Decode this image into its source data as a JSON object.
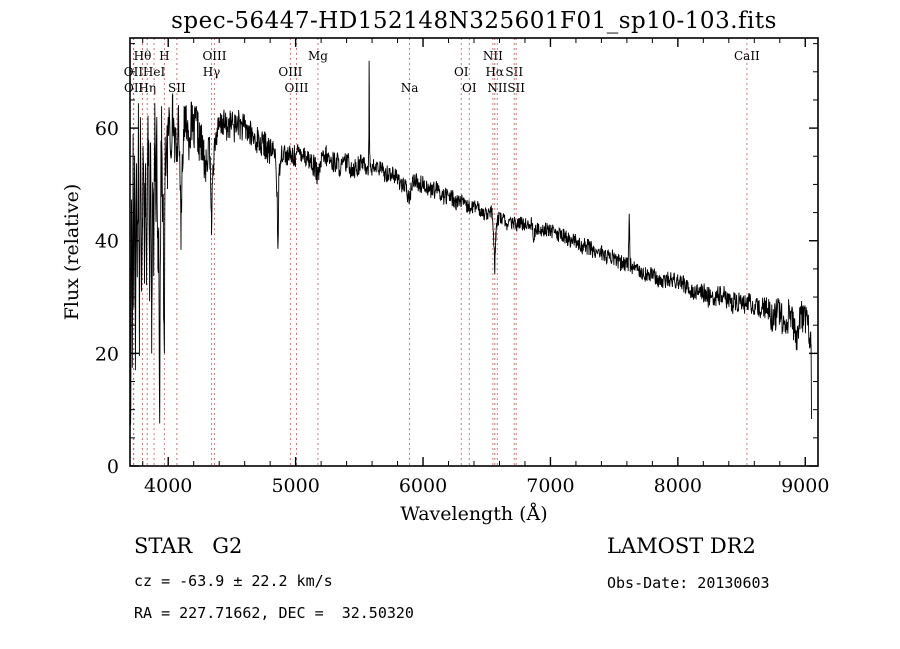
{
  "title": "spec-56447-HD152148N325601F01_sp10-103.fits",
  "footer": {
    "class_line": "STAR   G2",
    "cz_line": "cz = -63.9 ± 22.2 km/s",
    "radec_line": "RA = 227.71662, DEC =  32.50320",
    "survey": "LAMOST DR2",
    "obs_line": "Obs-Date: 20130603"
  },
  "chart_data": {
    "type": "line",
    "title": "spec-56447-HD152148N325601F01_sp10-103.fits",
    "xlabel": "Wavelength (Å)",
    "ylabel": "Flux (relative)",
    "xlim": [
      3700,
      9100
    ],
    "ylim": [
      0,
      76
    ],
    "xticks": [
      4000,
      5000,
      6000,
      7000,
      8000,
      9000
    ],
    "yticks": [
      0,
      20,
      40,
      60
    ],
    "x_minor_step": 200,
    "y_minor_step": 5,
    "grid": false,
    "legend": "none",
    "line_color": "#000000",
    "marker_color": "#bc6f6f",
    "spectral_lines": [
      {
        "label": "OII",
        "row": 2,
        "wavelength": 3727
      },
      {
        "label": "OII",
        "row": 3,
        "wavelength": 3729
      },
      {
        "label": "Hθ",
        "row": 1,
        "wavelength": 3798
      },
      {
        "label": "Hη",
        "row": 3,
        "wavelength": 3835
      },
      {
        "label": "HeI",
        "row": 2,
        "wavelength": 3889
      },
      {
        "label": "H",
        "row": 1,
        "wavelength": 3970
      },
      {
        "label": "SII",
        "row": 3,
        "wavelength": 4068
      },
      {
        "label": "Hγ",
        "row": 2,
        "wavelength": 4340
      },
      {
        "label": "OIII",
        "row": 1,
        "wavelength": 4363
      },
      {
        "label": "OIII",
        "row": 2,
        "wavelength": 4959
      },
      {
        "label": "OIII",
        "row": 3,
        "wavelength": 5007
      },
      {
        "label": "Mg",
        "row": 1,
        "wavelength": 5175
      },
      {
        "label": "Na",
        "row": 3,
        "wavelength": 5894
      },
      {
        "label": "OI",
        "row": 2,
        "wavelength": 6300
      },
      {
        "label": "OI",
        "row": 3,
        "wavelength": 6363
      },
      {
        "label": "NII",
        "row": 1,
        "wavelength": 6548
      },
      {
        "label": "Hα",
        "row": 2,
        "wavelength": 6563
      },
      {
        "label": "NII",
        "row": 3,
        "wavelength": 6583
      },
      {
        "label": "SII",
        "row": 2,
        "wavelength": 6716
      },
      {
        "label": "SII",
        "row": 3,
        "wavelength": 6731
      },
      {
        "label": "CaII",
        "row": 1,
        "wavelength": 8542
      }
    ],
    "anchors": [
      [
        3700,
        28
      ],
      [
        3705,
        8
      ],
      [
        3712,
        50
      ],
      [
        3718,
        22
      ],
      [
        3724,
        58
      ],
      [
        3730,
        30
      ],
      [
        3736,
        62
      ],
      [
        3742,
        18
      ],
      [
        3750,
        52
      ],
      [
        3758,
        38
      ],
      [
        3766,
        60
      ],
      [
        3774,
        24
      ],
      [
        3782,
        58
      ],
      [
        3790,
        34
      ],
      [
        3798,
        48
      ],
      [
        3806,
        60
      ],
      [
        3814,
        38
      ],
      [
        3822,
        56
      ],
      [
        3830,
        28
      ],
      [
        3838,
        54
      ],
      [
        3846,
        62
      ],
      [
        3854,
        35
      ],
      [
        3862,
        58
      ],
      [
        3870,
        22
      ],
      [
        3878,
        52
      ],
      [
        3886,
        33
      ],
      [
        3894,
        58
      ],
      [
        3902,
        46
      ],
      [
        3910,
        60
      ],
      [
        3918,
        42
      ],
      [
        3925,
        40
      ],
      [
        3933,
        12
      ],
      [
        3940,
        45
      ],
      [
        3948,
        58
      ],
      [
        3955,
        50
      ],
      [
        3962,
        40
      ],
      [
        3968,
        16
      ],
      [
        3975,
        50
      ],
      [
        3985,
        60
      ],
      [
        3995,
        55
      ],
      [
        4005,
        62
      ],
      [
        4020,
        57
      ],
      [
        4035,
        63
      ],
      [
        4050,
        58
      ],
      [
        4065,
        55
      ],
      [
        4080,
        61
      ],
      [
        4090,
        57
      ],
      [
        4100,
        42
      ],
      [
        4110,
        55
      ],
      [
        4125,
        60
      ],
      [
        4140,
        62
      ],
      [
        4160,
        58
      ],
      [
        4180,
        61
      ],
      [
        4200,
        59
      ],
      [
        4220,
        61
      ],
      [
        4240,
        58
      ],
      [
        4260,
        57
      ],
      [
        4280,
        55
      ],
      [
        4300,
        52
      ],
      [
        4315,
        56
      ],
      [
        4325,
        57
      ],
      [
        4336,
        47
      ],
      [
        4340,
        43
      ],
      [
        4348,
        52
      ],
      [
        4360,
        56
      ],
      [
        4380,
        59
      ],
      [
        4400,
        60
      ],
      [
        4430,
        61
      ],
      [
        4460,
        60
      ],
      [
        4490,
        61
      ],
      [
        4520,
        60
      ],
      [
        4550,
        61
      ],
      [
        4580,
        60
      ],
      [
        4610,
        60
      ],
      [
        4640,
        59
      ],
      [
        4670,
        58
      ],
      [
        4700,
        58
      ],
      [
        4730,
        57
      ],
      [
        4760,
        57
      ],
      [
        4790,
        56
      ],
      [
        4820,
        56
      ],
      [
        4840,
        56
      ],
      [
        4855,
        48
      ],
      [
        4861,
        37
      ],
      [
        4868,
        50
      ],
      [
        4880,
        55
      ],
      [
        4900,
        56
      ],
      [
        4930,
        55
      ],
      [
        4960,
        55
      ],
      [
        5000,
        55
      ],
      [
        5040,
        56
      ],
      [
        5080,
        55
      ],
      [
        5120,
        54
      ],
      [
        5155,
        53
      ],
      [
        5175,
        51
      ],
      [
        5200,
        54
      ],
      [
        5240,
        55
      ],
      [
        5280,
        54
      ],
      [
        5320,
        54
      ],
      [
        5360,
        53
      ],
      [
        5400,
        54
      ],
      [
        5440,
        53
      ],
      [
        5480,
        53
      ],
      [
        5520,
        54
      ],
      [
        5555,
        53
      ],
      [
        5570,
        53
      ],
      [
        5575,
        60
      ],
      [
        5577,
        71
      ],
      [
        5580,
        58
      ],
      [
        5585,
        53
      ],
      [
        5610,
        53
      ],
      [
        5650,
        53
      ],
      [
        5700,
        52
      ],
      [
        5750,
        52
      ],
      [
        5800,
        51
      ],
      [
        5840,
        50
      ],
      [
        5870,
        49
      ],
      [
        5890,
        47
      ],
      [
        5905,
        49
      ],
      [
        5930,
        51
      ],
      [
        5970,
        50
      ],
      [
        6010,
        50
      ],
      [
        6060,
        49
      ],
      [
        6110,
        49
      ],
      [
        6160,
        48
      ],
      [
        6210,
        48
      ],
      [
        6260,
        47
      ],
      [
        6300,
        47
      ],
      [
        6340,
        46
      ],
      [
        6380,
        46
      ],
      [
        6420,
        46
      ],
      [
        6460,
        45
      ],
      [
        6500,
        45
      ],
      [
        6540,
        45
      ],
      [
        6555,
        40
      ],
      [
        6563,
        35
      ],
      [
        6572,
        41
      ],
      [
        6585,
        44
      ],
      [
        6620,
        44
      ],
      [
        6660,
        43
      ],
      [
        6700,
        43
      ],
      [
        6740,
        43
      ],
      [
        6780,
        43
      ],
      [
        6820,
        43
      ],
      [
        6860,
        43
      ],
      [
        6868,
        39
      ],
      [
        6875,
        41
      ],
      [
        6885,
        42
      ],
      [
        6920,
        42
      ],
      [
        6960,
        42
      ],
      [
        7000,
        42
      ],
      [
        7050,
        41
      ],
      [
        7100,
        41
      ],
      [
        7150,
        40
      ],
      [
        7200,
        40
      ],
      [
        7250,
        39
      ],
      [
        7300,
        39
      ],
      [
        7350,
        38
      ],
      [
        7400,
        38
      ],
      [
        7450,
        37
      ],
      [
        7500,
        37
      ],
      [
        7550,
        36
      ],
      [
        7610,
        36
      ],
      [
        7618,
        44
      ],
      [
        7626,
        36
      ],
      [
        7660,
        35
      ],
      [
        7700,
        35
      ],
      [
        7750,
        34
      ],
      [
        7800,
        34
      ],
      [
        7850,
        33
      ],
      [
        7900,
        33
      ],
      [
        7950,
        33
      ],
      [
        8000,
        33
      ],
      [
        8060,
        32
      ],
      [
        8120,
        31
      ],
      [
        8180,
        31
      ],
      [
        8240,
        30
      ],
      [
        8300,
        30
      ],
      [
        8360,
        30
      ],
      [
        8420,
        29
      ],
      [
        8480,
        29
      ],
      [
        8542,
        29
      ],
      [
        8600,
        28
      ],
      [
        8650,
        28
      ],
      [
        8700,
        28
      ],
      [
        8750,
        26
      ],
      [
        8800,
        28
      ],
      [
        8840,
        23
      ],
      [
        8870,
        27
      ],
      [
        8900,
        26
      ],
      [
        8930,
        22
      ],
      [
        8960,
        27
      ],
      [
        9000,
        26
      ],
      [
        9030,
        24
      ],
      [
        9045,
        22
      ],
      [
        9050,
        8
      ]
    ],
    "noise_segments": [
      [
        3700,
        4000,
        8
      ],
      [
        4000,
        4300,
        4
      ],
      [
        4300,
        4800,
        2.6
      ],
      [
        4800,
        5500,
        2.0
      ],
      [
        5500,
        6300,
        1.6
      ],
      [
        6300,
        7200,
        1.3
      ],
      [
        7200,
        8200,
        1.5
      ],
      [
        8200,
        8700,
        2.0
      ],
      [
        8700,
        9060,
        2.8
      ]
    ],
    "noise_seed": 17,
    "sample_step": 3
  }
}
